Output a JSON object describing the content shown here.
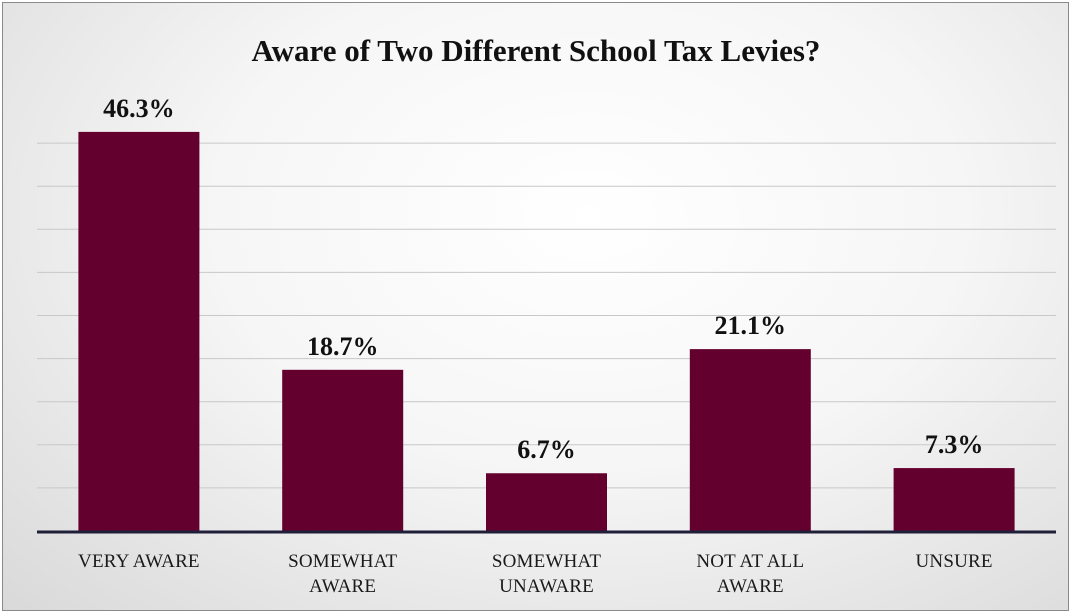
{
  "chart_data": {
    "type": "bar",
    "title": "Aware of Two Different School Tax Levies?",
    "categories": [
      [
        "VERY AWARE"
      ],
      [
        "SOMEWHAT",
        "AWARE"
      ],
      [
        "SOMEWHAT",
        "UNAWARE"
      ],
      [
        "NOT AT ALL",
        "AWARE"
      ],
      [
        "UNSURE"
      ]
    ],
    "values": [
      46.3,
      18.7,
      6.7,
      21.1,
      7.3
    ],
    "value_labels": [
      "46.3%",
      "18.7%",
      "6.7%",
      "21.1%",
      "7.3%"
    ],
    "ylim": [
      0,
      50
    ],
    "ytick_step": 5,
    "grid": true,
    "show_y_axis_labels": false,
    "legend": "none",
    "colors": {
      "bar": "#64002e",
      "axis": "#1f1f3a",
      "grid": "#c8c8c8"
    }
  }
}
